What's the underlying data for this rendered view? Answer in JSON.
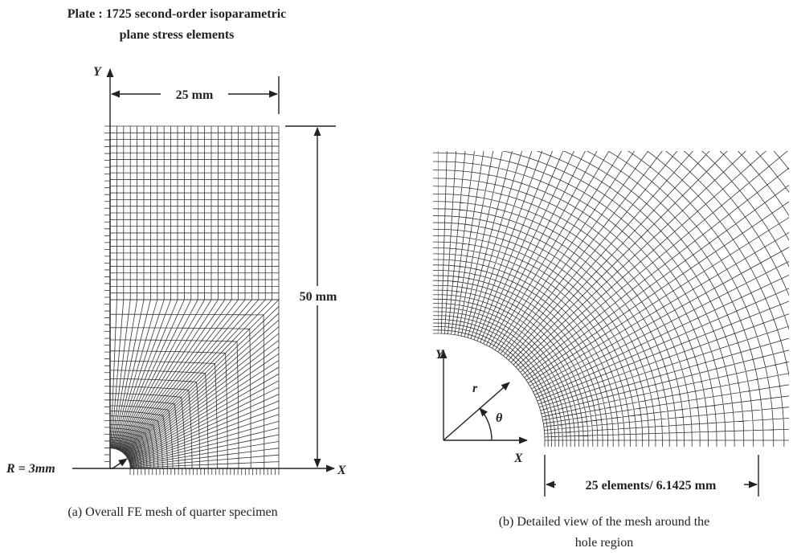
{
  "figure_a": {
    "title_lines": [
      "Plate : 1725 second-order isoparametric",
      "plane stress elements"
    ],
    "y_axis": "Y",
    "x_axis": "X",
    "width_label": "25 mm",
    "height_label": "50 mm",
    "radius_label": "R = 3mm",
    "caption": "(a) Overall FE mesh of quarter specimen"
  },
  "figure_b": {
    "y_axis": "Y",
    "x_axis": "X",
    "r_label": "r",
    "theta_label": "θ",
    "length_label": "25 elements/ 6.1425 mm",
    "caption_lines": [
      "(b) Detailed view of the mesh around the",
      "hole region"
    ]
  }
}
